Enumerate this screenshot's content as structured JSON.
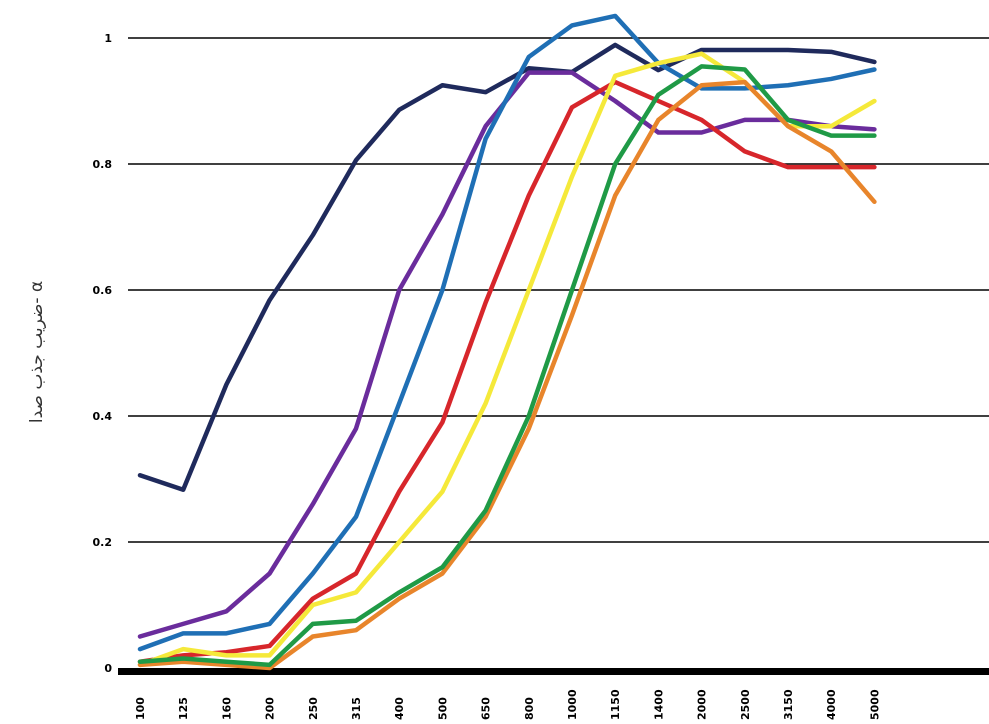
{
  "chart_data": {
    "type": "line",
    "y_label": "ضریب جذب صدا- α",
    "categories": [
      "100",
      "125",
      "160",
      "200",
      "250",
      "315",
      "400",
      "500",
      "650",
      "800",
      "1000",
      "1150",
      "1400",
      "2000",
      "2500",
      "3150",
      "4000",
      "5000"
    ],
    "ylim": [
      0,
      1
    ],
    "yticks": [
      0,
      0.2,
      0.4,
      0.6,
      0.8,
      1
    ],
    "grid": true,
    "series": [
      {
        "color": "#1f2a5c",
        "values": [
          0.306,
          0.283,
          0.45,
          0.584,
          0.687,
          0.806,
          0.886,
          0.925,
          0.914,
          0.952,
          0.946,
          0.989,
          0.949,
          0.981,
          0.981,
          0.981,
          0.978,
          0.962
        ]
      },
      {
        "color": "#6a2c9c",
        "values": [
          0.05,
          0.07,
          0.09,
          0.15,
          0.26,
          0.38,
          0.6,
          0.72,
          0.86,
          0.945,
          0.945,
          0.9,
          0.85,
          0.85,
          0.87,
          0.87,
          0.86,
          0.855
        ]
      },
      {
        "color": "#1f6fb5",
        "values": [
          0.03,
          0.055,
          0.055,
          0.07,
          0.15,
          0.24,
          0.42,
          0.6,
          0.84,
          0.97,
          1.02,
          1.035,
          0.96,
          0.92,
          0.92,
          0.925,
          0.935,
          0.95
        ]
      },
      {
        "color": "#d7262b",
        "values": [
          0.01,
          0.02,
          0.025,
          0.035,
          0.11,
          0.15,
          0.28,
          0.39,
          0.58,
          0.75,
          0.89,
          0.93,
          0.9,
          0.87,
          0.82,
          0.795,
          0.795,
          0.795
        ]
      },
      {
        "color": "#f5e93a",
        "values": [
          0.005,
          0.03,
          0.02,
          0.02,
          0.1,
          0.12,
          0.2,
          0.28,
          0.42,
          0.6,
          0.78,
          0.94,
          0.96,
          0.975,
          0.93,
          0.86,
          0.86,
          0.9
        ]
      },
      {
        "color": "#e8852b",
        "values": [
          0.005,
          0.01,
          0.005,
          0.0,
          0.05,
          0.06,
          0.11,
          0.15,
          0.24,
          0.38,
          0.56,
          0.75,
          0.87,
          0.925,
          0.93,
          0.86,
          0.82,
          0.74
        ]
      },
      {
        "color": "#1f9a46",
        "values": [
          0.01,
          0.015,
          0.01,
          0.005,
          0.07,
          0.075,
          0.12,
          0.16,
          0.25,
          0.4,
          0.6,
          0.8,
          0.91,
          0.955,
          0.95,
          0.87,
          0.845,
          0.845
        ]
      }
    ]
  }
}
